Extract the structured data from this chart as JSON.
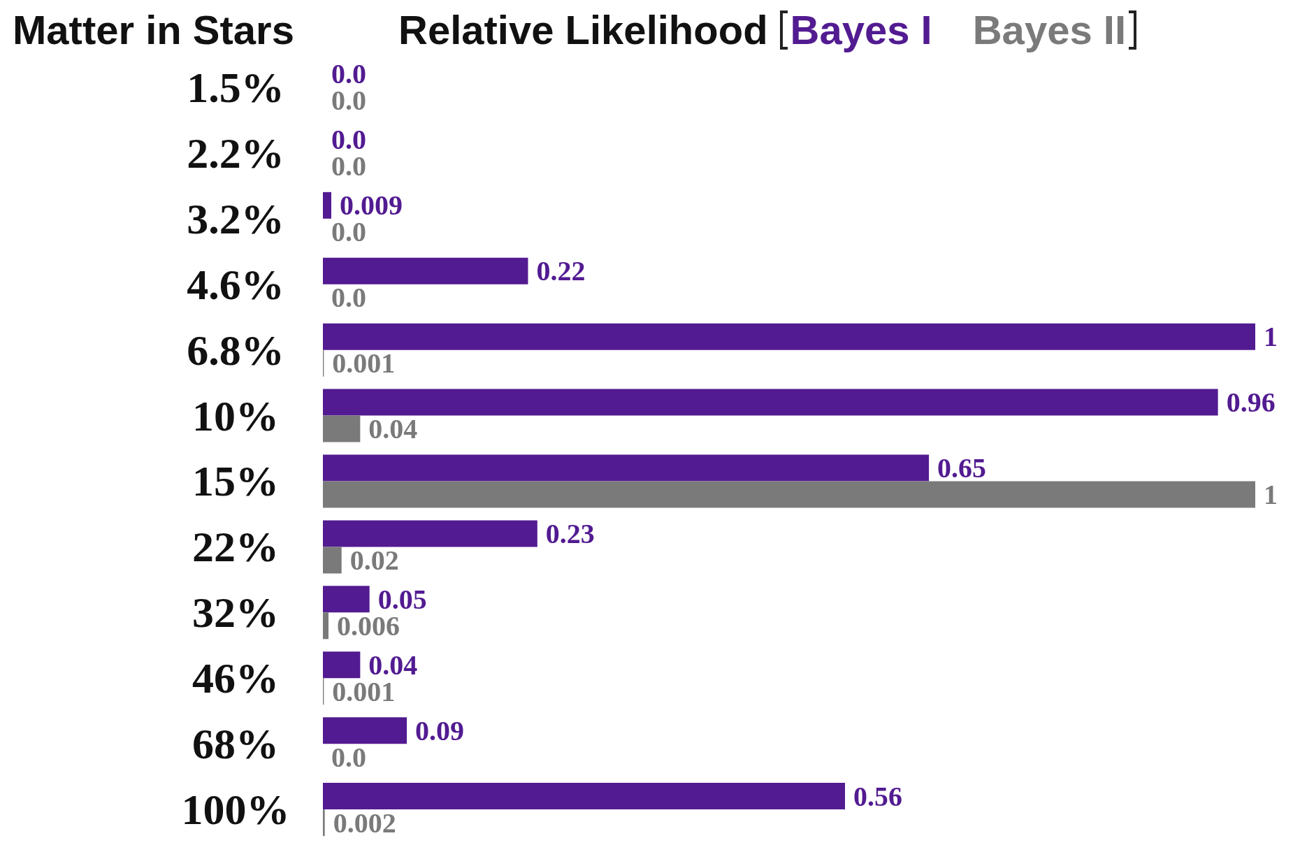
{
  "chart_data": {
    "type": "bar",
    "orientation": "horizontal",
    "title": "Relative Likelihood",
    "ylabel": "Matter in Stars",
    "categories": [
      "1.5%",
      "2.2%",
      "3.2%",
      "4.6%",
      "6.8%",
      "10%",
      "15%",
      "22%",
      "32%",
      "46%",
      "68%",
      "100%"
    ],
    "series": [
      {
        "name": "Bayes I",
        "color": "#521b91",
        "values": [
          0.0,
          0.0,
          0.009,
          0.22,
          1,
          0.96,
          0.65,
          0.23,
          0.05,
          0.04,
          0.09,
          0.56
        ],
        "value_labels": [
          "0.0",
          "0.0",
          "0.009",
          "0.22",
          "1",
          "0.96",
          "0.65",
          "0.23",
          "0.05",
          "0.04",
          "0.09",
          "0.56"
        ]
      },
      {
        "name": "Bayes II",
        "color": "#7a7a7a",
        "values": [
          0.0,
          0.0,
          0.0,
          0.0,
          0.001,
          0.04,
          1,
          0.02,
          0.006,
          0.001,
          0.0,
          0.002
        ],
        "value_labels": [
          "0.0",
          "0.0",
          "0.0",
          "0.0",
          "0.001",
          "0.04",
          "1",
          "0.02",
          "0.006",
          "0.001",
          "0.0",
          "0.002"
        ]
      }
    ],
    "legend": "top",
    "tick_labels": "y"
  }
}
